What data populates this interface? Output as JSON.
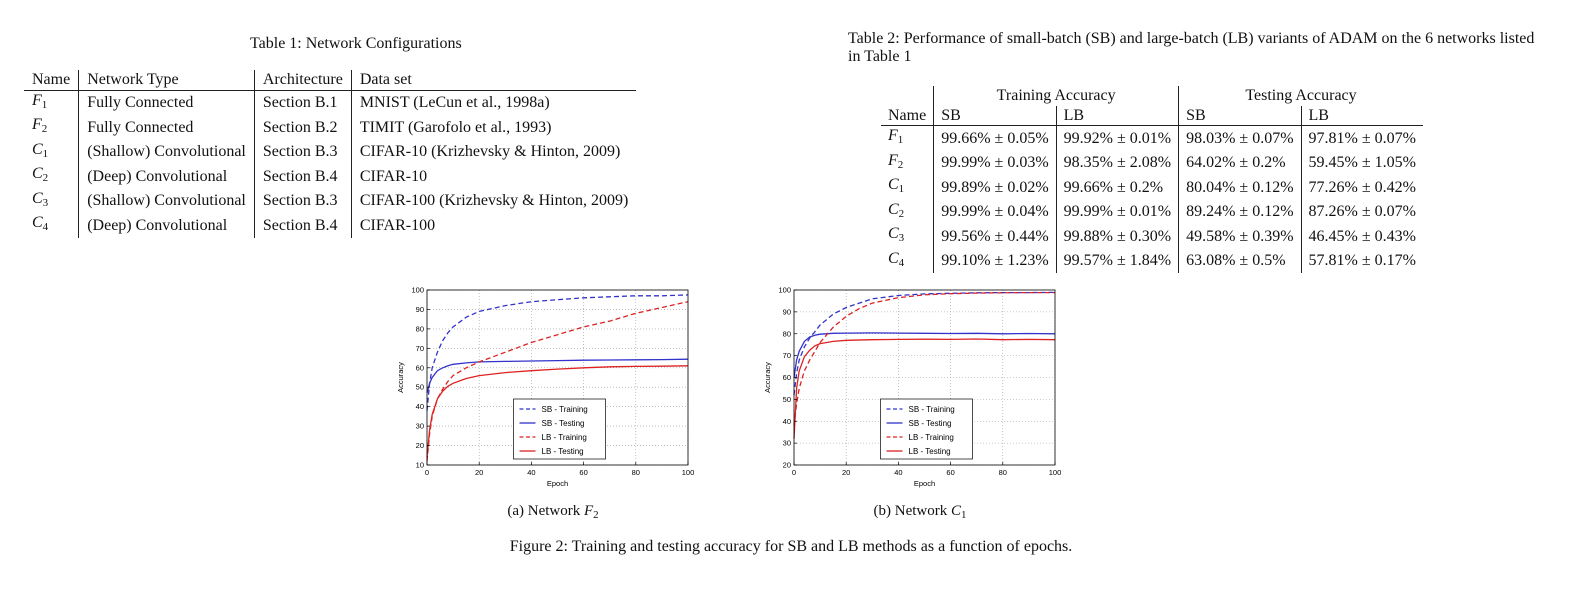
{
  "table1": {
    "caption": "Table 1: Network Configurations",
    "headers": [
      "Name",
      "Network Type",
      "Architecture",
      "Data set"
    ],
    "rows": [
      {
        "name_base": "F",
        "name_sub": "1",
        "type": "Fully Connected",
        "arch": "Section B.1",
        "dataset": "MNIST (LeCun et al., 1998a)"
      },
      {
        "name_base": "F",
        "name_sub": "2",
        "type": "Fully Connected",
        "arch": "Section B.2",
        "dataset": "TIMIT (Garofolo et al., 1993)"
      },
      {
        "name_base": "C",
        "name_sub": "1",
        "type": "(Shallow) Convolutional",
        "arch": "Section B.3",
        "dataset": "CIFAR-10 (Krizhevsky & Hinton, 2009)"
      },
      {
        "name_base": "C",
        "name_sub": "2",
        "type": "(Deep) Convolutional",
        "arch": "Section B.4",
        "dataset": "CIFAR-10"
      },
      {
        "name_base": "C",
        "name_sub": "3",
        "type": "(Shallow) Convolutional",
        "arch": "Section B.3",
        "dataset": "CIFAR-100 (Krizhevsky & Hinton, 2009)"
      },
      {
        "name_base": "C",
        "name_sub": "4",
        "type": "(Deep) Convolutional",
        "arch": "Section B.4",
        "dataset": "CIFAR-100"
      }
    ]
  },
  "table2": {
    "caption": "Table 2: Performance of small-batch (SB) and large-batch (LB) variants of ADAM on the 6 networks listed in Table 1",
    "group_headers": [
      "Training Accuracy",
      "Testing Accuracy"
    ],
    "headers": [
      "Name",
      "SB",
      "LB",
      "SB",
      "LB"
    ],
    "rows": [
      {
        "name_base": "F",
        "name_sub": "1",
        "v": [
          "99.66% ± 0.05%",
          "99.92% ± 0.01%",
          "98.03% ± 0.07%",
          "97.81% ± 0.07%"
        ]
      },
      {
        "name_base": "F",
        "name_sub": "2",
        "v": [
          "99.99% ± 0.03%",
          "98.35% ± 2.08%",
          "64.02% ± 0.2%",
          "59.45% ± 1.05%"
        ]
      },
      {
        "name_base": "C",
        "name_sub": "1",
        "v": [
          "99.89% ± 0.02%",
          "99.66% ± 0.2%",
          "80.04% ± 0.12%",
          "77.26% ± 0.42%"
        ]
      },
      {
        "name_base": "C",
        "name_sub": "2",
        "v": [
          "99.99% ± 0.04%",
          "99.99% ± 0.01%",
          "89.24% ± 0.12%",
          "87.26% ± 0.07%"
        ]
      },
      {
        "name_base": "C",
        "name_sub": "3",
        "v": [
          "99.56% ± 0.44%",
          "99.88% ± 0.30%",
          "49.58% ± 0.39%",
          "46.45% ± 0.43%"
        ]
      },
      {
        "name_base": "C",
        "name_sub": "4",
        "v": [
          "99.10% ± 1.23%",
          "99.57% ± 1.84%",
          "63.08% ± 0.5%",
          "57.81% ± 0.17%"
        ]
      }
    ]
  },
  "figure": {
    "caption": "Figure 2: Training and testing accuracy for SB and LB methods as a function of epochs.",
    "subcaption_a_prefix": "(a) Network ",
    "subcaption_a_base": "F",
    "subcaption_a_sub": "2",
    "subcaption_b_prefix": "(b) Network ",
    "subcaption_b_base": "C",
    "subcaption_b_sub": "1"
  },
  "chart_data": [
    {
      "type": "line",
      "xlabel": "Epoch",
      "ylabel": "Accuracy",
      "xlim": [
        0,
        100
      ],
      "ylim": [
        10,
        100
      ],
      "xticks": [
        0,
        20,
        40,
        60,
        80,
        100
      ],
      "yticks": [
        10,
        20,
        30,
        40,
        50,
        60,
        70,
        80,
        90,
        100
      ],
      "grid": true,
      "legend_position": "lower-center",
      "series": [
        {
          "name": "SB - Training",
          "color": "#3333cc",
          "dash": true,
          "x": [
            0,
            1,
            2,
            4,
            6,
            8,
            10,
            15,
            20,
            30,
            40,
            50,
            60,
            70,
            80,
            90,
            100
          ],
          "y": [
            38,
            52,
            60,
            68,
            74,
            78,
            81,
            86,
            89,
            92,
            94,
            95,
            96,
            96.5,
            97,
            97,
            97.5
          ]
        },
        {
          "name": "SB - Testing",
          "color": "#3333cc",
          "dash": false,
          "x": [
            0,
            1,
            2,
            4,
            6,
            8,
            10,
            15,
            20,
            30,
            40,
            50,
            60,
            70,
            80,
            90,
            100
          ],
          "y": [
            47,
            52,
            55,
            58.5,
            60,
            61,
            61.8,
            62.5,
            63,
            63.3,
            63.5,
            63.7,
            63.9,
            64,
            64.1,
            64.2,
            64.4
          ]
        },
        {
          "name": "LB - Training",
          "color": "#dd2222",
          "dash": true,
          "x": [
            0,
            1,
            2,
            4,
            6,
            8,
            10,
            15,
            20,
            30,
            40,
            50,
            60,
            70,
            80,
            90,
            100
          ],
          "y": [
            12,
            26,
            35,
            44,
            49,
            53,
            56,
            60,
            63,
            68,
            73,
            77,
            81,
            84,
            88,
            91,
            94
          ]
        },
        {
          "name": "LB - Testing",
          "color": "#dd2222",
          "dash": false,
          "x": [
            0,
            1,
            2,
            4,
            6,
            8,
            10,
            15,
            20,
            30,
            40,
            50,
            60,
            70,
            80,
            90,
            100
          ],
          "y": [
            14,
            28,
            36,
            44,
            48,
            50.5,
            52,
            54.5,
            56,
            57.5,
            58.5,
            59.3,
            60,
            60.5,
            60.7,
            60.8,
            61
          ]
        }
      ]
    },
    {
      "type": "line",
      "xlabel": "Epoch",
      "ylabel": "Accuracy",
      "xlim": [
        0,
        100
      ],
      "ylim": [
        20,
        100
      ],
      "xticks": [
        0,
        20,
        40,
        60,
        80,
        100
      ],
      "yticks": [
        20,
        30,
        40,
        50,
        60,
        70,
        80,
        90,
        100
      ],
      "grid": true,
      "legend_position": "lower-center",
      "series": [
        {
          "name": "SB - Training",
          "color": "#3333cc",
          "dash": true,
          "x": [
            0,
            1,
            2,
            4,
            6,
            8,
            10,
            15,
            20,
            25,
            30,
            40,
            50,
            60,
            70,
            80,
            90,
            100
          ],
          "y": [
            52,
            62,
            68,
            74,
            78,
            81,
            84,
            89,
            92,
            94,
            96,
            97.5,
            98.2,
            98.5,
            98.7,
            98.8,
            98.8,
            98.9
          ]
        },
        {
          "name": "SB - Testing",
          "color": "#3333cc",
          "dash": false,
          "x": [
            0,
            1,
            2,
            4,
            6,
            8,
            10,
            15,
            20,
            30,
            40,
            50,
            60,
            70,
            80,
            90,
            100
          ],
          "y": [
            60,
            68,
            72,
            76.5,
            78.5,
            79.3,
            79.8,
            80.2,
            80.3,
            80.4,
            80.3,
            80.2,
            80.1,
            80.2,
            80.0,
            80.1,
            80.0
          ]
        },
        {
          "name": "LB - Training",
          "color": "#dd2222",
          "dash": true,
          "x": [
            0,
            1,
            2,
            4,
            6,
            8,
            10,
            15,
            20,
            25,
            30,
            40,
            50,
            60,
            70,
            80,
            90,
            100
          ],
          "y": [
            38,
            48,
            55,
            63,
            68,
            72,
            76,
            83,
            88,
            91.5,
            94,
            96.5,
            97.8,
            98.3,
            98.6,
            98.7,
            98.8,
            98.8
          ]
        },
        {
          "name": "LB - Testing",
          "color": "#dd2222",
          "dash": false,
          "x": [
            0,
            1,
            2,
            4,
            6,
            8,
            10,
            15,
            20,
            30,
            40,
            50,
            60,
            70,
            80,
            90,
            100
          ],
          "y": [
            32,
            55,
            63,
            69.5,
            72.5,
            74.5,
            75.5,
            76.5,
            77,
            77.3,
            77.4,
            77.5,
            77.4,
            77.6,
            77.3,
            77.4,
            77.3
          ]
        }
      ]
    }
  ]
}
